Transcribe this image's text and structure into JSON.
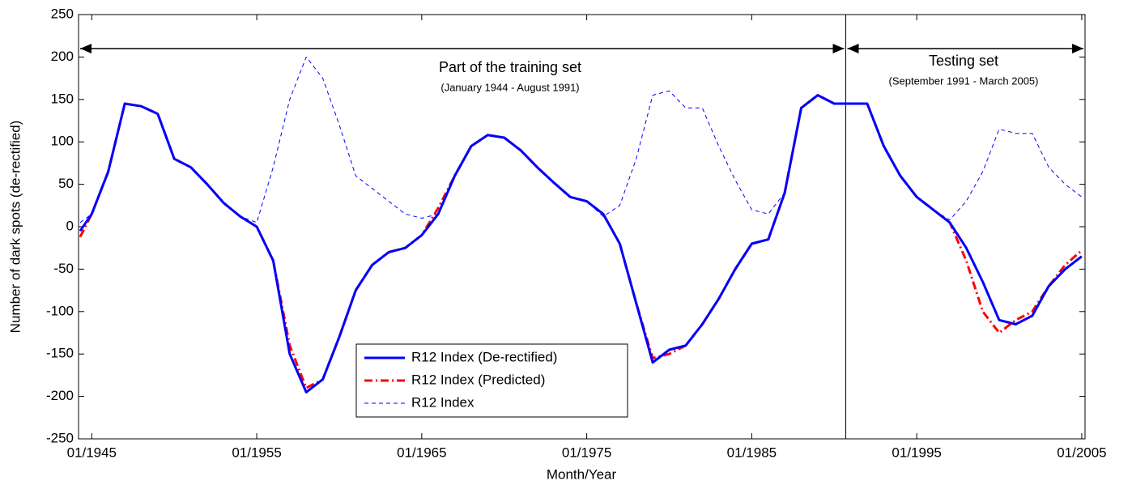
{
  "chart_data": {
    "type": "line",
    "xlabel": "Month/Year",
    "ylabel": "Number of dark spots (de-rectified)",
    "annotations": {
      "training": "Part of the training set",
      "training_range": "(January 1944 - August 1991)",
      "testing": "Testing set",
      "testing_range": "(September 1991 - March 2005)",
      "split_x": 1990.7
    },
    "x": [
      1944.3,
      1945,
      1946,
      1947,
      1948,
      1949,
      1950,
      1951,
      1952,
      1953,
      1954,
      1955,
      1956,
      1957,
      1958,
      1959,
      1960,
      1961,
      1962,
      1963,
      1964,
      1965,
      1966,
      1967,
      1968,
      1969,
      1970,
      1971,
      1972,
      1973,
      1974,
      1975,
      1976,
      1977,
      1978,
      1979,
      1980,
      1981,
      1982,
      1983,
      1984,
      1985,
      1986,
      1987,
      1988,
      1989,
      1990,
      1991,
      1992,
      1993,
      1994,
      1995,
      1996,
      1997,
      1998,
      1999,
      2000,
      2001,
      2002,
      2003,
      2004,
      2005
    ],
    "series": [
      {
        "name": "R12 Index (De-rectified)",
        "color": "#0000ff",
        "style": "solid",
        "values": [
          -5,
          15,
          65,
          145,
          142,
          133,
          80,
          70,
          50,
          28,
          12,
          0,
          -40,
          -150,
          -195,
          -180,
          -130,
          -75,
          -45,
          -30,
          -25,
          -10,
          15,
          60,
          95,
          108,
          105,
          90,
          70,
          52,
          35,
          30,
          15,
          -20,
          -90,
          -160,
          -145,
          -140,
          -115,
          -85,
          -50,
          -20,
          -15,
          40,
          140,
          155,
          145,
          145,
          145,
          95,
          60,
          35,
          20,
          5,
          -25,
          -65,
          -110,
          -115,
          -105,
          -70,
          -50,
          -35
        ]
      },
      {
        "name": "R12 Index (Predicted)",
        "color": "#ff0000",
        "style": "dashdot",
        "values": [
          -12,
          15,
          65,
          145,
          142,
          133,
          80,
          70,
          50,
          28,
          12,
          0,
          -40,
          -140,
          -190,
          -180,
          -130,
          -75,
          -45,
          -30,
          -25,
          -10,
          22,
          60,
          95,
          108,
          105,
          90,
          70,
          52,
          35,
          30,
          15,
          -20,
          -90,
          -155,
          -150,
          -140,
          -115,
          -85,
          -50,
          -20,
          -15,
          40,
          140,
          155,
          145,
          145,
          145,
          95,
          60,
          35,
          20,
          5,
          -40,
          -100,
          -125,
          -110,
          -100,
          -70,
          -45,
          -28
        ]
      },
      {
        "name": "R12 Index",
        "color": "#0000ff",
        "style": "dashed",
        "values": [
          5,
          15,
          65,
          145,
          142,
          133,
          80,
          70,
          50,
          28,
          12,
          5,
          70,
          150,
          200,
          175,
          120,
          60,
          45,
          30,
          15,
          10,
          15,
          60,
          95,
          108,
          105,
          90,
          70,
          52,
          35,
          30,
          12,
          25,
          80,
          155,
          160,
          140,
          140,
          95,
          55,
          20,
          15,
          40,
          140,
          155,
          145,
          145,
          145,
          95,
          60,
          35,
          20,
          8,
          30,
          65,
          115,
          110,
          110,
          70,
          50,
          35
        ]
      }
    ],
    "xlim": [
      1944.2,
      2005.2
    ],
    "xticks": [
      {
        "value": 1945,
        "label": "01/1945"
      },
      {
        "value": 1955,
        "label": "01/1955"
      },
      {
        "value": 1965,
        "label": "01/1965"
      },
      {
        "value": 1975,
        "label": "01/1975"
      },
      {
        "value": 1985,
        "label": "01/1985"
      },
      {
        "value": 1995,
        "label": "01/1995"
      },
      {
        "value": 2005,
        "label": "01/2005"
      }
    ],
    "ylim": [
      -250,
      250
    ],
    "yticks": [
      -250,
      -200,
      -150,
      -100,
      -50,
      0,
      50,
      100,
      150,
      200,
      250
    ],
    "legend": "lower center"
  }
}
